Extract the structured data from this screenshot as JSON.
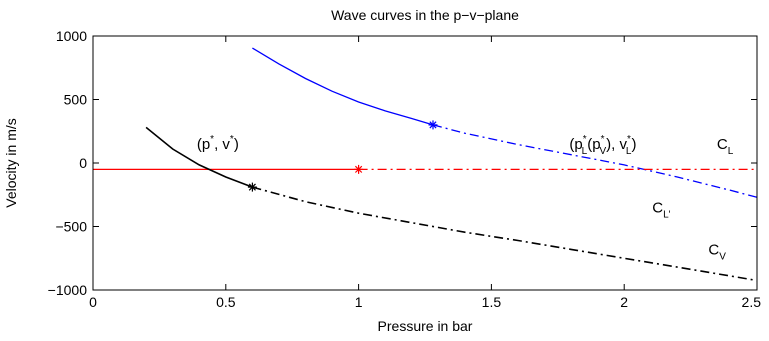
{
  "chart_data": {
    "type": "line",
    "title": "Wave curves in the p−v−plane",
    "xlabel": "Pressure in bar",
    "ylabel": "Velocity in m/s",
    "xlim": [
      0,
      2.5
    ],
    "ylim": [
      -1000,
      1000
    ],
    "grid": false,
    "legend": "none",
    "x_ticks": [
      0,
      0.5,
      1,
      1.5,
      2,
      2.5
    ],
    "x_tick_labels": [
      "0",
      "0.5",
      "1",
      "1.5",
      "2",
      "2.5"
    ],
    "y_ticks": [
      -1000,
      -500,
      0,
      500,
      1000
    ],
    "y_tick_labels": [
      "−1000",
      "−500",
      "0",
      "500",
      "1000"
    ],
    "colors": {
      "blue": "#0000ff",
      "red": "#ff0000",
      "black": "#000000"
    },
    "series": [
      {
        "color": "#0000ff",
        "style": "solid",
        "x": [
          0.6,
          0.7,
          0.8,
          0.9,
          1.0,
          1.1,
          1.2,
          1.28
        ],
        "y": [
          905,
          780,
          665,
          565,
          480,
          410,
          350,
          300
        ]
      },
      {
        "color": "#0000ff",
        "style": "dashdot",
        "x": [
          1.28,
          1.4,
          1.6,
          1.8,
          2.0,
          2.2,
          2.4,
          2.5
        ],
        "y": [
          300,
          235,
          145,
          65,
          -15,
          -110,
          -215,
          -270
        ]
      },
      {
        "color": "#ff0000",
        "style": "solid",
        "x": [
          0.0,
          1.0
        ],
        "y": [
          -50,
          -50
        ]
      },
      {
        "color": "#ff0000",
        "style": "dashdot",
        "x": [
          1.0,
          2.5
        ],
        "y": [
          -50,
          -50
        ]
      },
      {
        "color": "#000000",
        "style": "solid",
        "x": [
          0.2,
          0.3,
          0.4,
          0.5,
          0.6
        ],
        "y": [
          280,
          110,
          -15,
          -110,
          -190
        ]
      },
      {
        "color": "#000000",
        "style": "dashdot",
        "x": [
          0.6,
          0.8,
          1.0,
          1.2,
          1.4,
          1.6,
          1.8,
          2.0,
          2.2,
          2.4,
          2.5
        ],
        "y": [
          -190,
          -305,
          -395,
          -470,
          -545,
          -610,
          -680,
          -750,
          -820,
          -890,
          -925
        ]
      }
    ],
    "markers": [
      {
        "x": 1.28,
        "y": 300,
        "color": "#0000ff",
        "symbol": "*"
      },
      {
        "x": 1.0,
        "y": -50,
        "color": "#ff0000",
        "symbol": "*"
      },
      {
        "x": 0.6,
        "y": -190,
        "color": "#000000",
        "symbol": "*"
      }
    ],
    "annotations": [
      {
        "id": "pv_star",
        "parts": [
          "(p",
          "*",
          ", v",
          "*",
          ")"
        ],
        "x": 0.47,
        "y": 110
      },
      {
        "id": "pl_star",
        "parts": [
          "(p",
          "*",
          "L",
          "(p",
          "*",
          "V",
          "), v",
          "*",
          "L",
          ")"
        ],
        "x": 1.92,
        "y": 110
      },
      {
        "id": "c_l",
        "main": "C",
        "sub": "L",
        "x": 2.38,
        "y": 110
      },
      {
        "id": "c_lp",
        "main": "C",
        "sub": "L'",
        "x": 2.14,
        "y": -390
      },
      {
        "id": "c_v",
        "main": "C",
        "sub": "V",
        "x": 2.35,
        "y": -720
      }
    ]
  }
}
